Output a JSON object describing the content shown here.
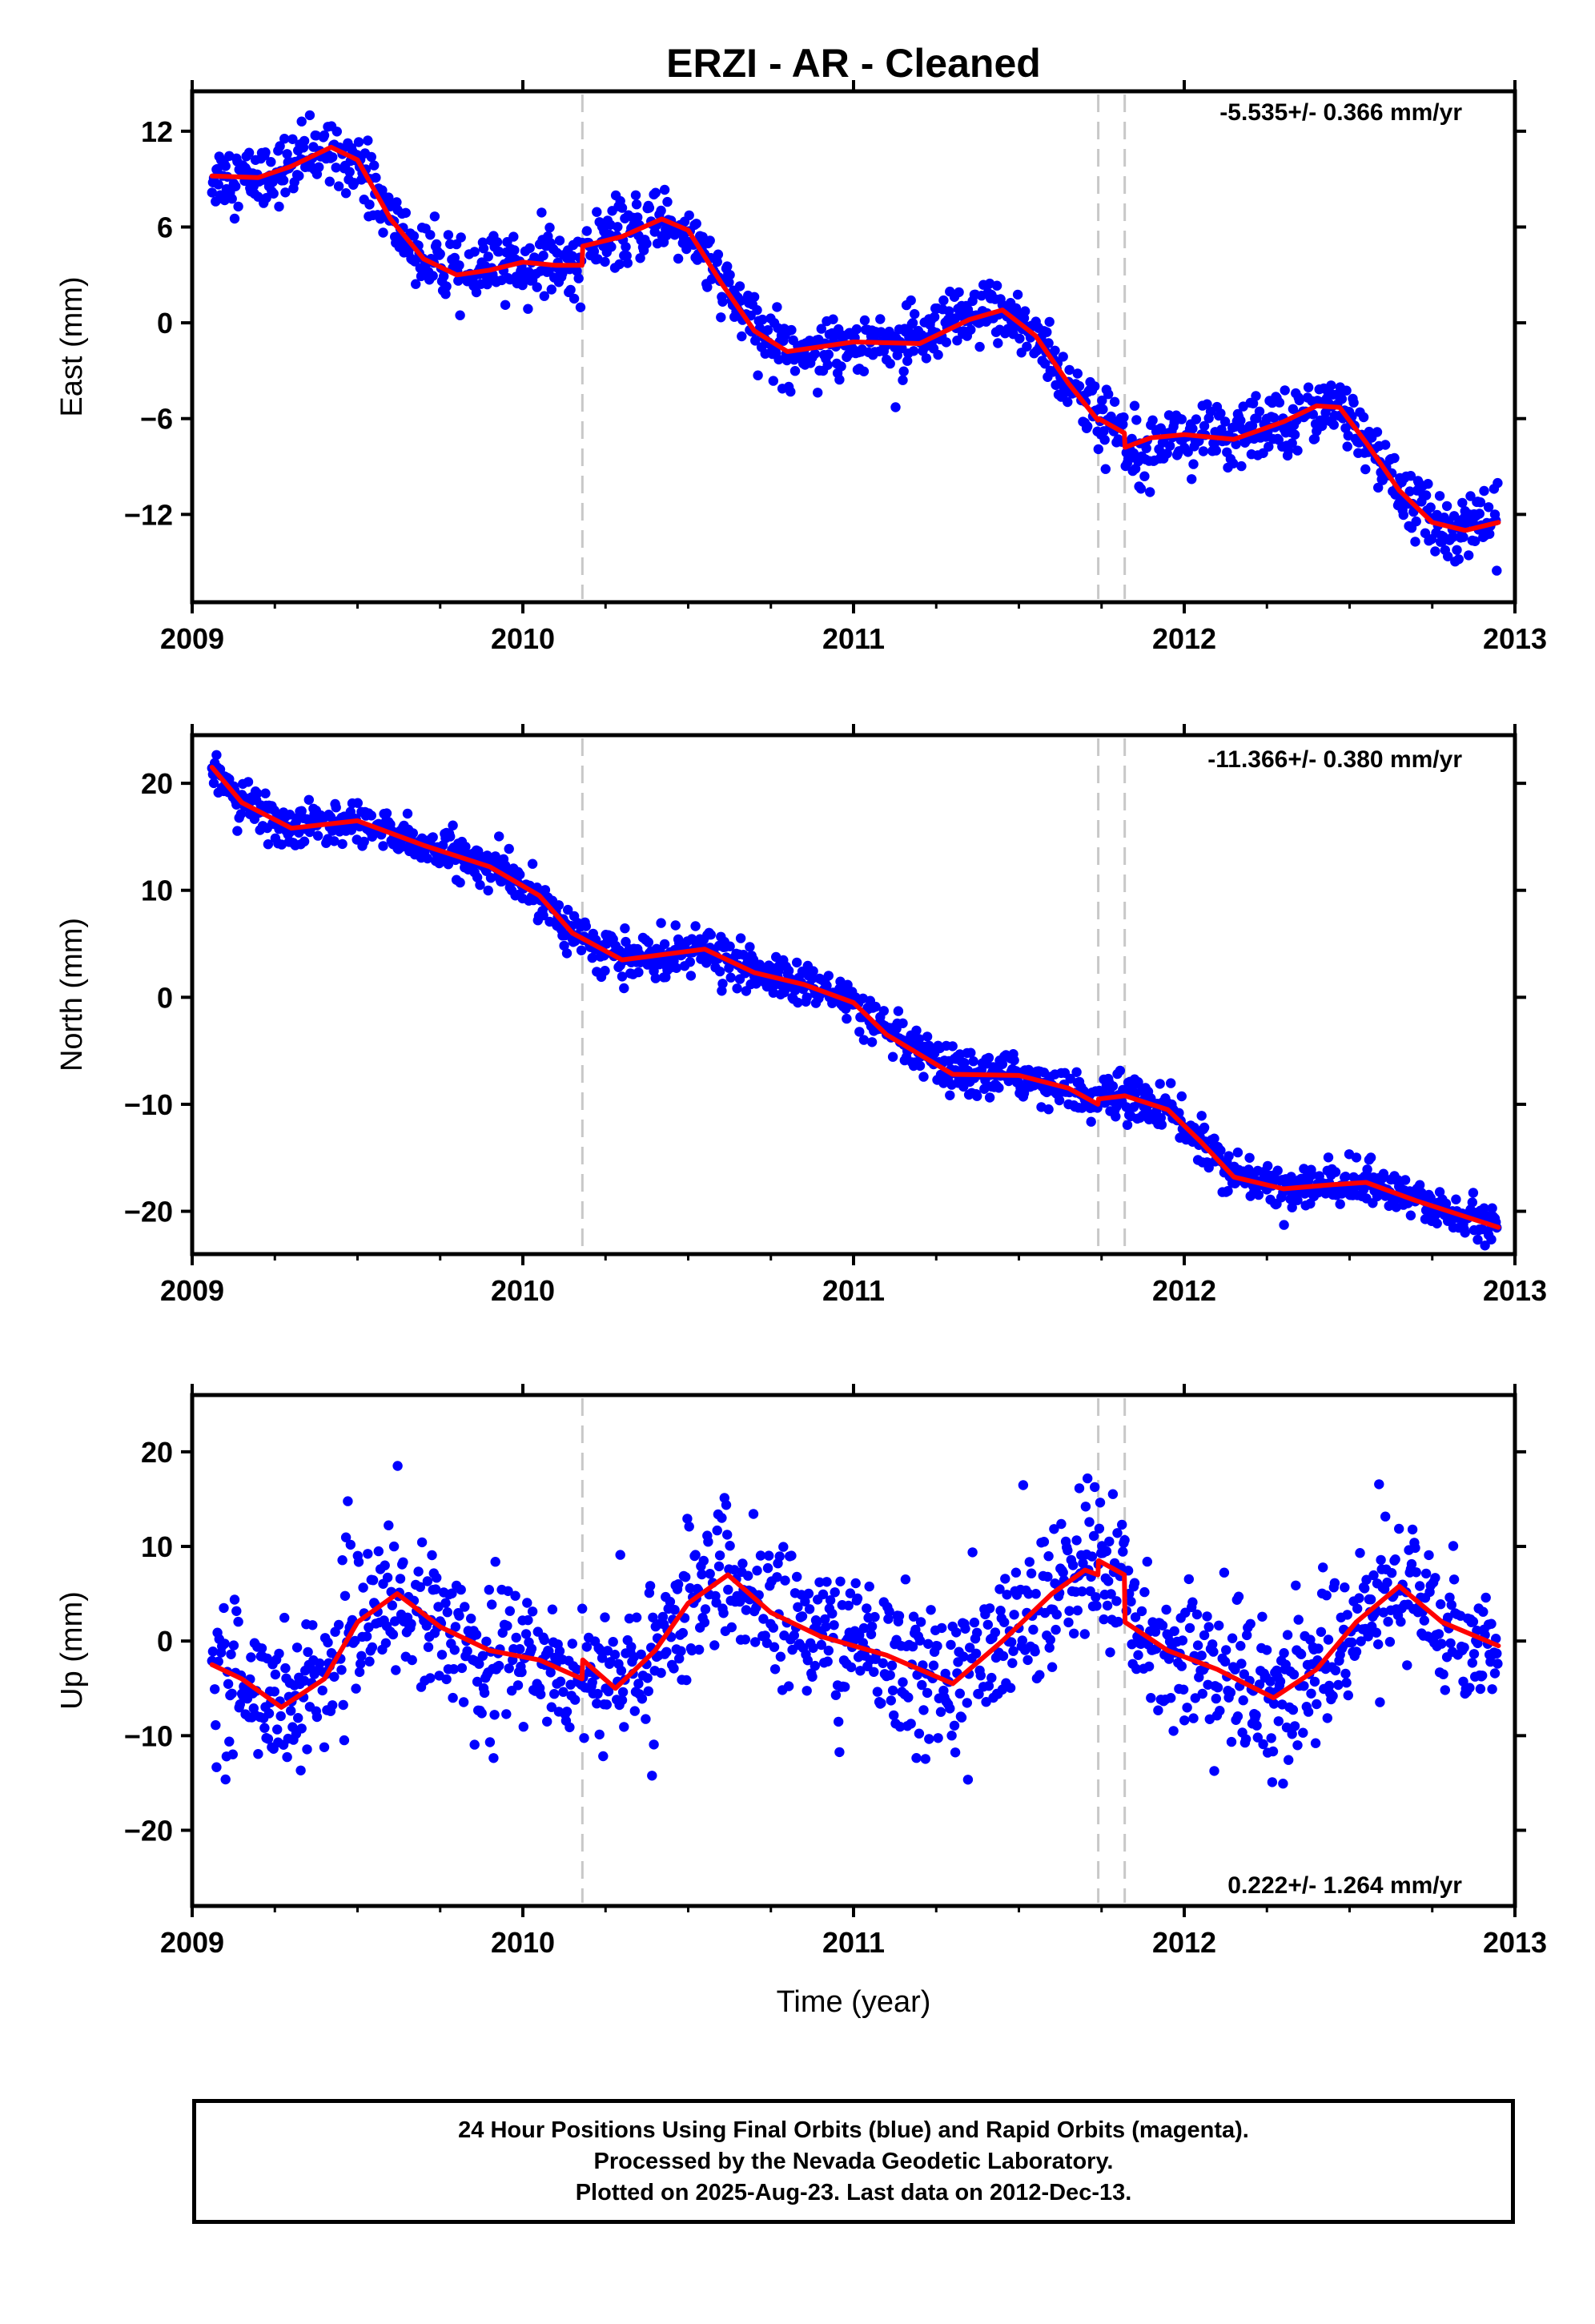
{
  "title": "ERZI  - AR - Cleaned",
  "xlabel": "Time (year)",
  "colors": {
    "points": "#0000ff",
    "model": "#ff0000",
    "breaks": "#c8c8c8",
    "frame": "#000000"
  },
  "footer": {
    "line1": "24 Hour Positions Using Final Orbits (blue) and Rapid Orbits (magenta).",
    "line2": "Processed by the Nevada Geodetic Laboratory.",
    "line3": "Plotted on 2025-Aug-23. Last data on 2012-Dec-13."
  },
  "chart_data": [
    {
      "type": "scatter",
      "component": "East",
      "ylabel": "East (mm)",
      "rate_label": "-5.535+/- 0.366 mm/yr",
      "xlim": [
        2009,
        2013
      ],
      "ylim": [
        -17.5,
        14.5
      ],
      "xticks": [
        2009,
        2010,
        2011,
        2012,
        2013
      ],
      "yticks": [
        -12,
        -6,
        0,
        6,
        12
      ],
      "ytick_labels": [
        "−12",
        "−6",
        "0",
        "6",
        "12"
      ],
      "breaks": [
        2010.18,
        2011.74,
        2011.82
      ],
      "data_span": [
        2009.06,
        2012.95
      ],
      "noise_sd": 1.0,
      "model": {
        "x": [
          2009.06,
          2009.2,
          2009.3,
          2009.42,
          2009.5,
          2009.6,
          2009.7,
          2009.8,
          2009.9,
          2010.0,
          2010.1,
          2010.179,
          2010.181,
          2010.3,
          2010.42,
          2010.5,
          2010.6,
          2010.7,
          2010.8,
          2011.0,
          2011.2,
          2011.35,
          2011.45,
          2011.55,
          2011.65,
          2011.739,
          2011.741,
          2011.819,
          2011.821,
          2011.9,
          2012.0,
          2012.15,
          2012.3,
          2012.4,
          2012.47,
          2012.55,
          2012.65,
          2012.75,
          2012.85,
          2012.95
        ],
        "y": [
          9.2,
          9.1,
          9.8,
          11.0,
          10.2,
          6.5,
          4.0,
          3.0,
          3.3,
          3.8,
          3.6,
          3.6,
          4.8,
          5.4,
          6.5,
          5.8,
          2.5,
          -0.5,
          -1.8,
          -1.2,
          -1.3,
          0.2,
          0.8,
          -0.8,
          -3.8,
          -6.1,
          -6.0,
          -6.9,
          -7.8,
          -7.2,
          -7.0,
          -7.3,
          -6.2,
          -5.2,
          -5.3,
          -7.5,
          -10.5,
          -12.5,
          -13.0,
          -12.5
        ]
      }
    },
    {
      "type": "scatter",
      "component": "North",
      "ylabel": "North (mm)",
      "rate_label": "-11.366+/- 0.380 mm/yr",
      "xlim": [
        2009,
        2013
      ],
      "ylim": [
        -24,
        24.5
      ],
      "xticks": [
        2009,
        2010,
        2011,
        2012,
        2013
      ],
      "yticks": [
        -20,
        -10,
        0,
        10,
        20
      ],
      "ytick_labels": [
        "−20",
        "−10",
        "0",
        "10",
        "20"
      ],
      "breaks": [
        2010.18,
        2011.74,
        2011.82
      ],
      "data_span": [
        2009.06,
        2012.95
      ],
      "noise_sd": 1.0,
      "model": {
        "x": [
          2009.06,
          2009.15,
          2009.3,
          2009.5,
          2009.7,
          2009.9,
          2010.05,
          2010.15,
          2010.3,
          2010.55,
          2010.7,
          2010.85,
          2011.0,
          2011.1,
          2011.3,
          2011.5,
          2011.65,
          2011.739,
          2011.741,
          2011.82,
          2011.95,
          2012.05,
          2012.15,
          2012.3,
          2012.45,
          2012.55,
          2012.7,
          2012.85,
          2012.95
        ],
        "y": [
          21.5,
          18.2,
          15.8,
          16.5,
          14.2,
          12.2,
          9.5,
          6.0,
          3.5,
          4.5,
          2.3,
          1.2,
          -0.5,
          -3.5,
          -7.2,
          -7.3,
          -8.5,
          -10.0,
          -9.5,
          -9.2,
          -10.5,
          -13.5,
          -16.8,
          -17.9,
          -17.5,
          -17.3,
          -19.0,
          -20.5,
          -21.5
        ]
      }
    },
    {
      "type": "scatter",
      "component": "Up",
      "ylabel": "Up (mm)",
      "rate_label": "0.222+/- 1.264 mm/yr",
      "xlim": [
        2009,
        2013
      ],
      "ylim": [
        -28,
        26
      ],
      "xticks": [
        2009,
        2010,
        2011,
        2012,
        2013
      ],
      "yticks": [
        -20,
        -10,
        0,
        10,
        20
      ],
      "ytick_labels": [
        "−20",
        "−10",
        "0",
        "10",
        "20"
      ],
      "breaks": [
        2010.18,
        2011.74,
        2011.82
      ],
      "data_span": [
        2009.06,
        2012.95
      ],
      "noise_sd": 3.8,
      "model": {
        "x": [
          2009.06,
          2009.15,
          2009.27,
          2009.4,
          2009.5,
          2009.62,
          2009.75,
          2009.9,
          2010.05,
          2010.179,
          2010.181,
          2010.28,
          2010.4,
          2010.5,
          2010.62,
          2010.75,
          2010.9,
          2011.1,
          2011.3,
          2011.45,
          2011.6,
          2011.7,
          2011.739,
          2011.741,
          2011.819,
          2011.821,
          2011.95,
          2012.1,
          2012.27,
          2012.4,
          2012.52,
          2012.65,
          2012.78,
          2012.95
        ],
        "y": [
          -2.5,
          -4.0,
          -7.0,
          -4.0,
          2.0,
          5.0,
          1.5,
          -1.0,
          -2.0,
          -4.0,
          -2.0,
          -5.0,
          -1.0,
          4.0,
          7.0,
          3.0,
          0.5,
          -1.5,
          -4.5,
          0.0,
          5.0,
          7.5,
          7.0,
          8.5,
          7.0,
          2.0,
          -1.0,
          -3.0,
          -6.0,
          -3.0,
          2.0,
          5.8,
          2.0,
          -0.5
        ]
      }
    }
  ]
}
